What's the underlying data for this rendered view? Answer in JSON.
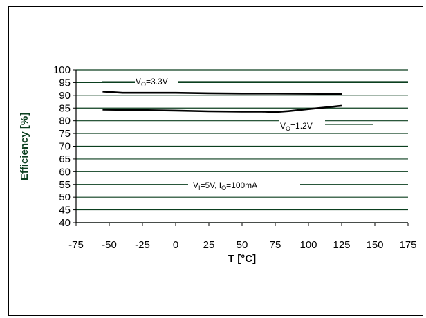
{
  "chart_data": {
    "type": "line",
    "title": "",
    "xlabel": "T [°C]",
    "ylabel": "Efficiency [%]",
    "xlim": [
      -75,
      175
    ],
    "ylim": [
      40,
      100
    ],
    "xticks": [
      -75,
      -50,
      -25,
      0,
      25,
      50,
      75,
      100,
      125,
      150,
      175
    ],
    "yticks": [
      40,
      45,
      50,
      55,
      60,
      65,
      70,
      75,
      80,
      85,
      90,
      95,
      100
    ],
    "grid": "horizontal",
    "series": [
      {
        "name": "VO=3.3V",
        "x": [
          -55,
          -40,
          -25,
          0,
          25,
          50,
          75,
          100,
          125
        ],
        "y": [
          91.5,
          91.0,
          91.0,
          91.0,
          90.8,
          90.7,
          90.7,
          90.6,
          90.5
        ]
      },
      {
        "name": "VO=1.2V",
        "x": [
          -55,
          -40,
          -25,
          0,
          25,
          50,
          65,
          75,
          85,
          100,
          112,
          125
        ],
        "y": [
          84.4,
          84.3,
          84.2,
          84.0,
          83.7,
          83.6,
          83.6,
          83.4,
          83.8,
          84.6,
          85.2,
          85.9
        ]
      }
    ],
    "annotations": {
      "vo33": {
        "main": "V",
        "sub": "O",
        "rest": "=3.3V"
      },
      "vo12": {
        "main": "V",
        "sub": "O",
        "rest": "=1.2V"
      },
      "cond": {
        "v": "V",
        "vsub": "I",
        "vrest": "=5V, I",
        "isub": "O",
        "irest": "=100mA"
      }
    },
    "colors": {
      "series": "#000000",
      "grid": "#0b3f1f",
      "axis_title": "#0b3f1f",
      "axis": "#000000"
    }
  }
}
